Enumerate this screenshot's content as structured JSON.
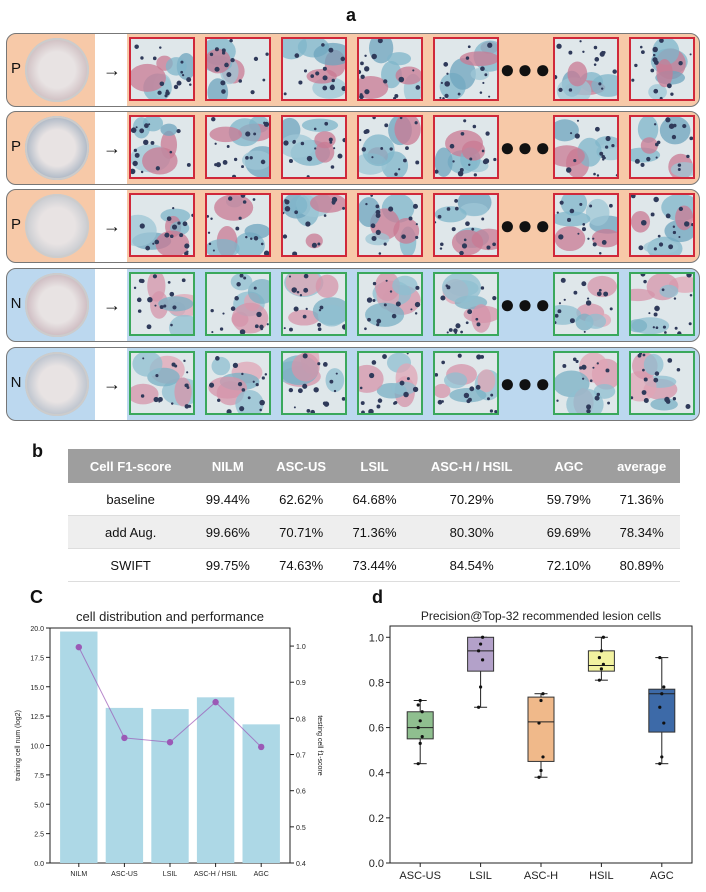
{
  "panels": {
    "a": "a",
    "b": "b",
    "c": "C",
    "d": "d"
  },
  "rows": [
    {
      "label": "P",
      "kind": "positive",
      "slide": "#b79aa0"
    },
    {
      "label": "P",
      "kind": "positive",
      "slide": "#6f8aa6"
    },
    {
      "label": "P",
      "kind": "positive",
      "slide": "#a8b3bd"
    },
    {
      "label": "N",
      "kind": "negative",
      "slide": "#b1909c"
    },
    {
      "label": "N",
      "kind": "negative",
      "slide": "#8ca1b7"
    }
  ],
  "colors": {
    "positive_bg": "#f7c9a8",
    "negative_bg": "#bcd8ef",
    "positive_border": "#d0283a",
    "negative_border": "#3aa85c",
    "bar": "#add8e6",
    "line": "#9b59b6"
  },
  "arrow": "→",
  "ellipsis": "●●●",
  "table": {
    "headers": [
      "Cell F1-score",
      "NILM",
      "ASC-US",
      "LSIL",
      "ASC-H / HSIL",
      "AGC",
      "average"
    ],
    "rows": [
      [
        "baseline",
        "99.44%",
        "62.62%",
        "64.68%",
        "70.29%",
        "59.79%",
        "71.36%"
      ],
      [
        "add Aug.",
        "99.66%",
        "70.71%",
        "71.36%",
        "80.30%",
        "69.69%",
        "78.34%"
      ],
      [
        "SWIFT",
        "99.75%",
        "74.63%",
        "73.44%",
        "84.54%",
        "72.10%",
        "80.89%"
      ]
    ]
  },
  "chart_data": [
    {
      "type": "bar",
      "title": "cell distribution and performance",
      "categories": [
        "NILM",
        "ASC-US",
        "LSIL",
        "ASC-H / HSIL",
        "AGC"
      ],
      "ylabel": "training cell num (log2)",
      "y2label": "testing cell f1-score",
      "ylim": [
        0,
        20
      ],
      "y2lim": [
        0.4,
        1.05
      ],
      "yticks": [
        "0.0",
        "2.5",
        "5.0",
        "7.5",
        "10.0",
        "12.5",
        "15.0",
        "17.5",
        "20.0"
      ],
      "y2ticks": [
        "0.4",
        "0.5",
        "0.6",
        "0.7",
        "0.8",
        "0.9",
        "1.0"
      ],
      "series": [
        {
          "name": "training cell num (log2)",
          "type": "bar",
          "values": [
            19.7,
            13.2,
            13.1,
            14.1,
            11.8
          ]
        },
        {
          "name": "testing cell f1-score",
          "type": "line",
          "values": [
            0.997,
            0.746,
            0.734,
            0.845,
            0.721
          ]
        }
      ]
    },
    {
      "type": "box",
      "title": "Precision@Top-32 recommended lesion cells",
      "categories": [
        "ASC-US",
        "LSIL",
        "ASC-H",
        "HSIL",
        "AGC"
      ],
      "ylim": [
        0,
        1.05
      ],
      "yticks": [
        "0.0",
        "0.2",
        "0.4",
        "0.6",
        "0.8",
        "1.0"
      ],
      "colors": [
        "#8fbf8f",
        "#b3a1c9",
        "#f0b98a",
        "#f2f2a0",
        "#3d6aa8"
      ],
      "series": [
        {
          "name": "ASC-US",
          "min": 0.44,
          "q1": 0.55,
          "median": 0.6,
          "q3": 0.67,
          "max": 0.72,
          "points": [
            0.44,
            0.53,
            0.56,
            0.6,
            0.63,
            0.67,
            0.7,
            0.72
          ]
        },
        {
          "name": "LSIL",
          "min": 0.69,
          "q1": 0.85,
          "median": 0.94,
          "q3": 1.0,
          "max": 1.0,
          "points": [
            0.69,
            0.78,
            0.9,
            0.94,
            0.97,
            1.0
          ]
        },
        {
          "name": "ASC-H",
          "min": 0.38,
          "q1": 0.45,
          "median": 0.625,
          "q3": 0.735,
          "max": 0.75,
          "points": [
            0.38,
            0.41,
            0.47,
            0.62,
            0.72,
            0.75
          ]
        },
        {
          "name": "HSIL",
          "min": 0.81,
          "q1": 0.85,
          "median": 0.875,
          "q3": 0.94,
          "max": 1.0,
          "points": [
            0.81,
            0.86,
            0.88,
            0.91,
            0.94,
            1.0
          ]
        },
        {
          "name": "AGC",
          "min": 0.44,
          "q1": 0.58,
          "median": 0.75,
          "q3": 0.77,
          "max": 0.91,
          "points": [
            0.44,
            0.47,
            0.62,
            0.69,
            0.75,
            0.78,
            0.91
          ]
        }
      ]
    }
  ]
}
